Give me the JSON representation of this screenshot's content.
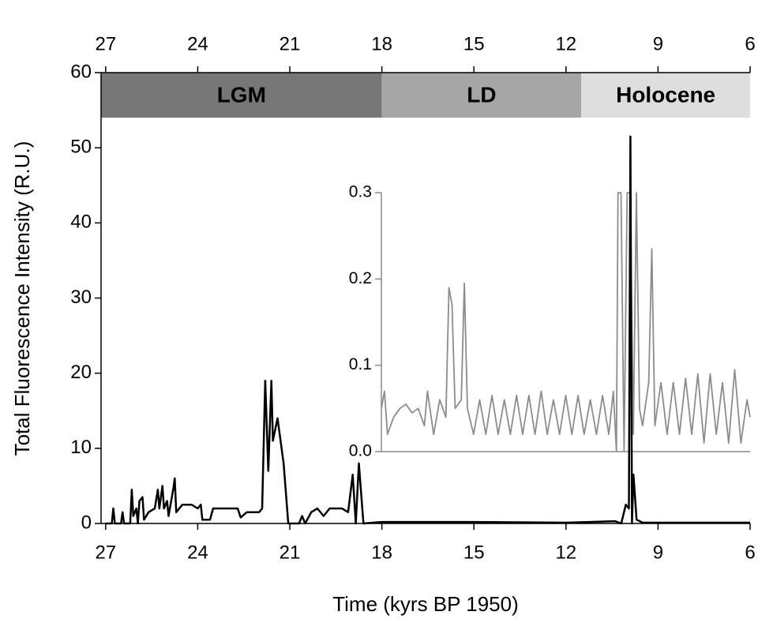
{
  "chart_data": [
    {
      "type": "line",
      "xlabel": "Time (kyrs BP 1950)",
      "ylabel": "Total Fluorescence Intensity (R.U.)",
      "xlim": [
        27.15,
        6
      ],
      "ylim": [
        0,
        60
      ],
      "xticks": [
        27,
        24,
        21,
        18,
        15,
        12,
        9,
        6
      ],
      "yticks": [
        0,
        10,
        20,
        30,
        40,
        50,
        60
      ],
      "color": "#000000",
      "bands": [
        {
          "label": "LGM",
          "start": 27.15,
          "end": 18,
          "color": "#777777"
        },
        {
          "label": "LD",
          "start": 18,
          "end": 11.5,
          "color": "#a6a6a6"
        },
        {
          "label": "Holocene",
          "start": 11.5,
          "end": 6,
          "color": "#dedede"
        }
      ],
      "x": [
        27.0,
        26.8,
        26.75,
        26.7,
        26.5,
        26.45,
        26.4,
        26.2,
        26.15,
        26.1,
        26.0,
        25.95,
        25.9,
        25.8,
        25.75,
        25.6,
        25.4,
        25.3,
        25.25,
        25.15,
        25.1,
        25.0,
        24.95,
        24.8,
        24.75,
        24.7,
        24.5,
        24.2,
        24.0,
        23.9,
        23.85,
        23.6,
        23.5,
        23.0,
        22.7,
        22.6,
        22.4,
        22.0,
        21.9,
        21.8,
        21.7,
        21.6,
        21.55,
        21.4,
        21.2,
        21.05,
        20.7,
        20.6,
        20.5,
        20.3,
        20.1,
        19.9,
        19.7,
        19.3,
        19.1,
        18.95,
        18.85,
        18.75,
        18.6,
        18.0,
        15.0,
        12.0,
        10.4,
        10.2,
        10.05,
        9.95,
        9.9,
        9.85,
        9.8,
        9.7,
        9.5,
        6.0
      ],
      "values": [
        0,
        0,
        2,
        0,
        0,
        1.5,
        0,
        0,
        4.5,
        1,
        2,
        0,
        3,
        3.5,
        0.5,
        1.5,
        2,
        4.5,
        2,
        5,
        2,
        3,
        1,
        4.5,
        6,
        1.5,
        2.5,
        2.5,
        2,
        2.5,
        0.5,
        0.5,
        2,
        2,
        2,
        0.8,
        1.5,
        1.5,
        2,
        19,
        7,
        19,
        11,
        14,
        8,
        0,
        0,
        1,
        0,
        1.5,
        2,
        1,
        2,
        2,
        1.5,
        6.5,
        0,
        8,
        0,
        0.2,
        0.2,
        0.1,
        0.3,
        0,
        2.5,
        2,
        51.5,
        0,
        6.5,
        0.5,
        0.1,
        0.1
      ]
    },
    {
      "type": "line",
      "xlim": [
        18,
        6
      ],
      "ylim": [
        0,
        0.3
      ],
      "yticks": [
        {
          "value": 0,
          "label": "0.0"
        },
        0.1,
        0.2,
        0.3
      ],
      "color": "#8c8c8c",
      "x": [
        18.0,
        17.9,
        17.8,
        17.6,
        17.4,
        17.2,
        17.0,
        16.8,
        16.6,
        16.5,
        16.3,
        16.1,
        15.9,
        15.8,
        15.7,
        15.6,
        15.4,
        15.3,
        15.2,
        15.0,
        14.8,
        14.6,
        14.4,
        14.2,
        14.0,
        13.8,
        13.6,
        13.4,
        13.2,
        13.0,
        12.8,
        12.6,
        12.4,
        12.2,
        12.0,
        11.8,
        11.6,
        11.4,
        11.2,
        11.0,
        10.8,
        10.6,
        10.45,
        10.35,
        10.3,
        10.2,
        10.1,
        10.0,
        9.9,
        9.8,
        9.7,
        9.6,
        9.5,
        9.3,
        9.2,
        9.1,
        8.9,
        8.7,
        8.5,
        8.3,
        8.1,
        7.9,
        7.7,
        7.5,
        7.3,
        7.1,
        6.9,
        6.7,
        6.5,
        6.3,
        6.1,
        6.0
      ],
      "values": [
        0.05,
        0.07,
        0.02,
        0.04,
        0.05,
        0.055,
        0.045,
        0.05,
        0.03,
        0.07,
        0.02,
        0.06,
        0.04,
        0.19,
        0.17,
        0.05,
        0.06,
        0.195,
        0.05,
        0.02,
        0.06,
        0.02,
        0.065,
        0.02,
        0.06,
        0.02,
        0.065,
        0.02,
        0.065,
        0.02,
        0.07,
        0.02,
        0.06,
        0.02,
        0.065,
        0.02,
        0.065,
        0.02,
        0.06,
        0.02,
        0.065,
        0.02,
        0.07,
        0.0,
        0.3,
        0.3,
        0.0,
        0.3,
        0.3,
        0.02,
        0.3,
        0.05,
        0.03,
        0.08,
        0.235,
        0.03,
        0.08,
        0.02,
        0.08,
        0.02,
        0.085,
        0.02,
        0.09,
        0.01,
        0.09,
        0.02,
        0.08,
        0.01,
        0.095,
        0.01,
        0.06,
        0.04
      ]
    }
  ]
}
